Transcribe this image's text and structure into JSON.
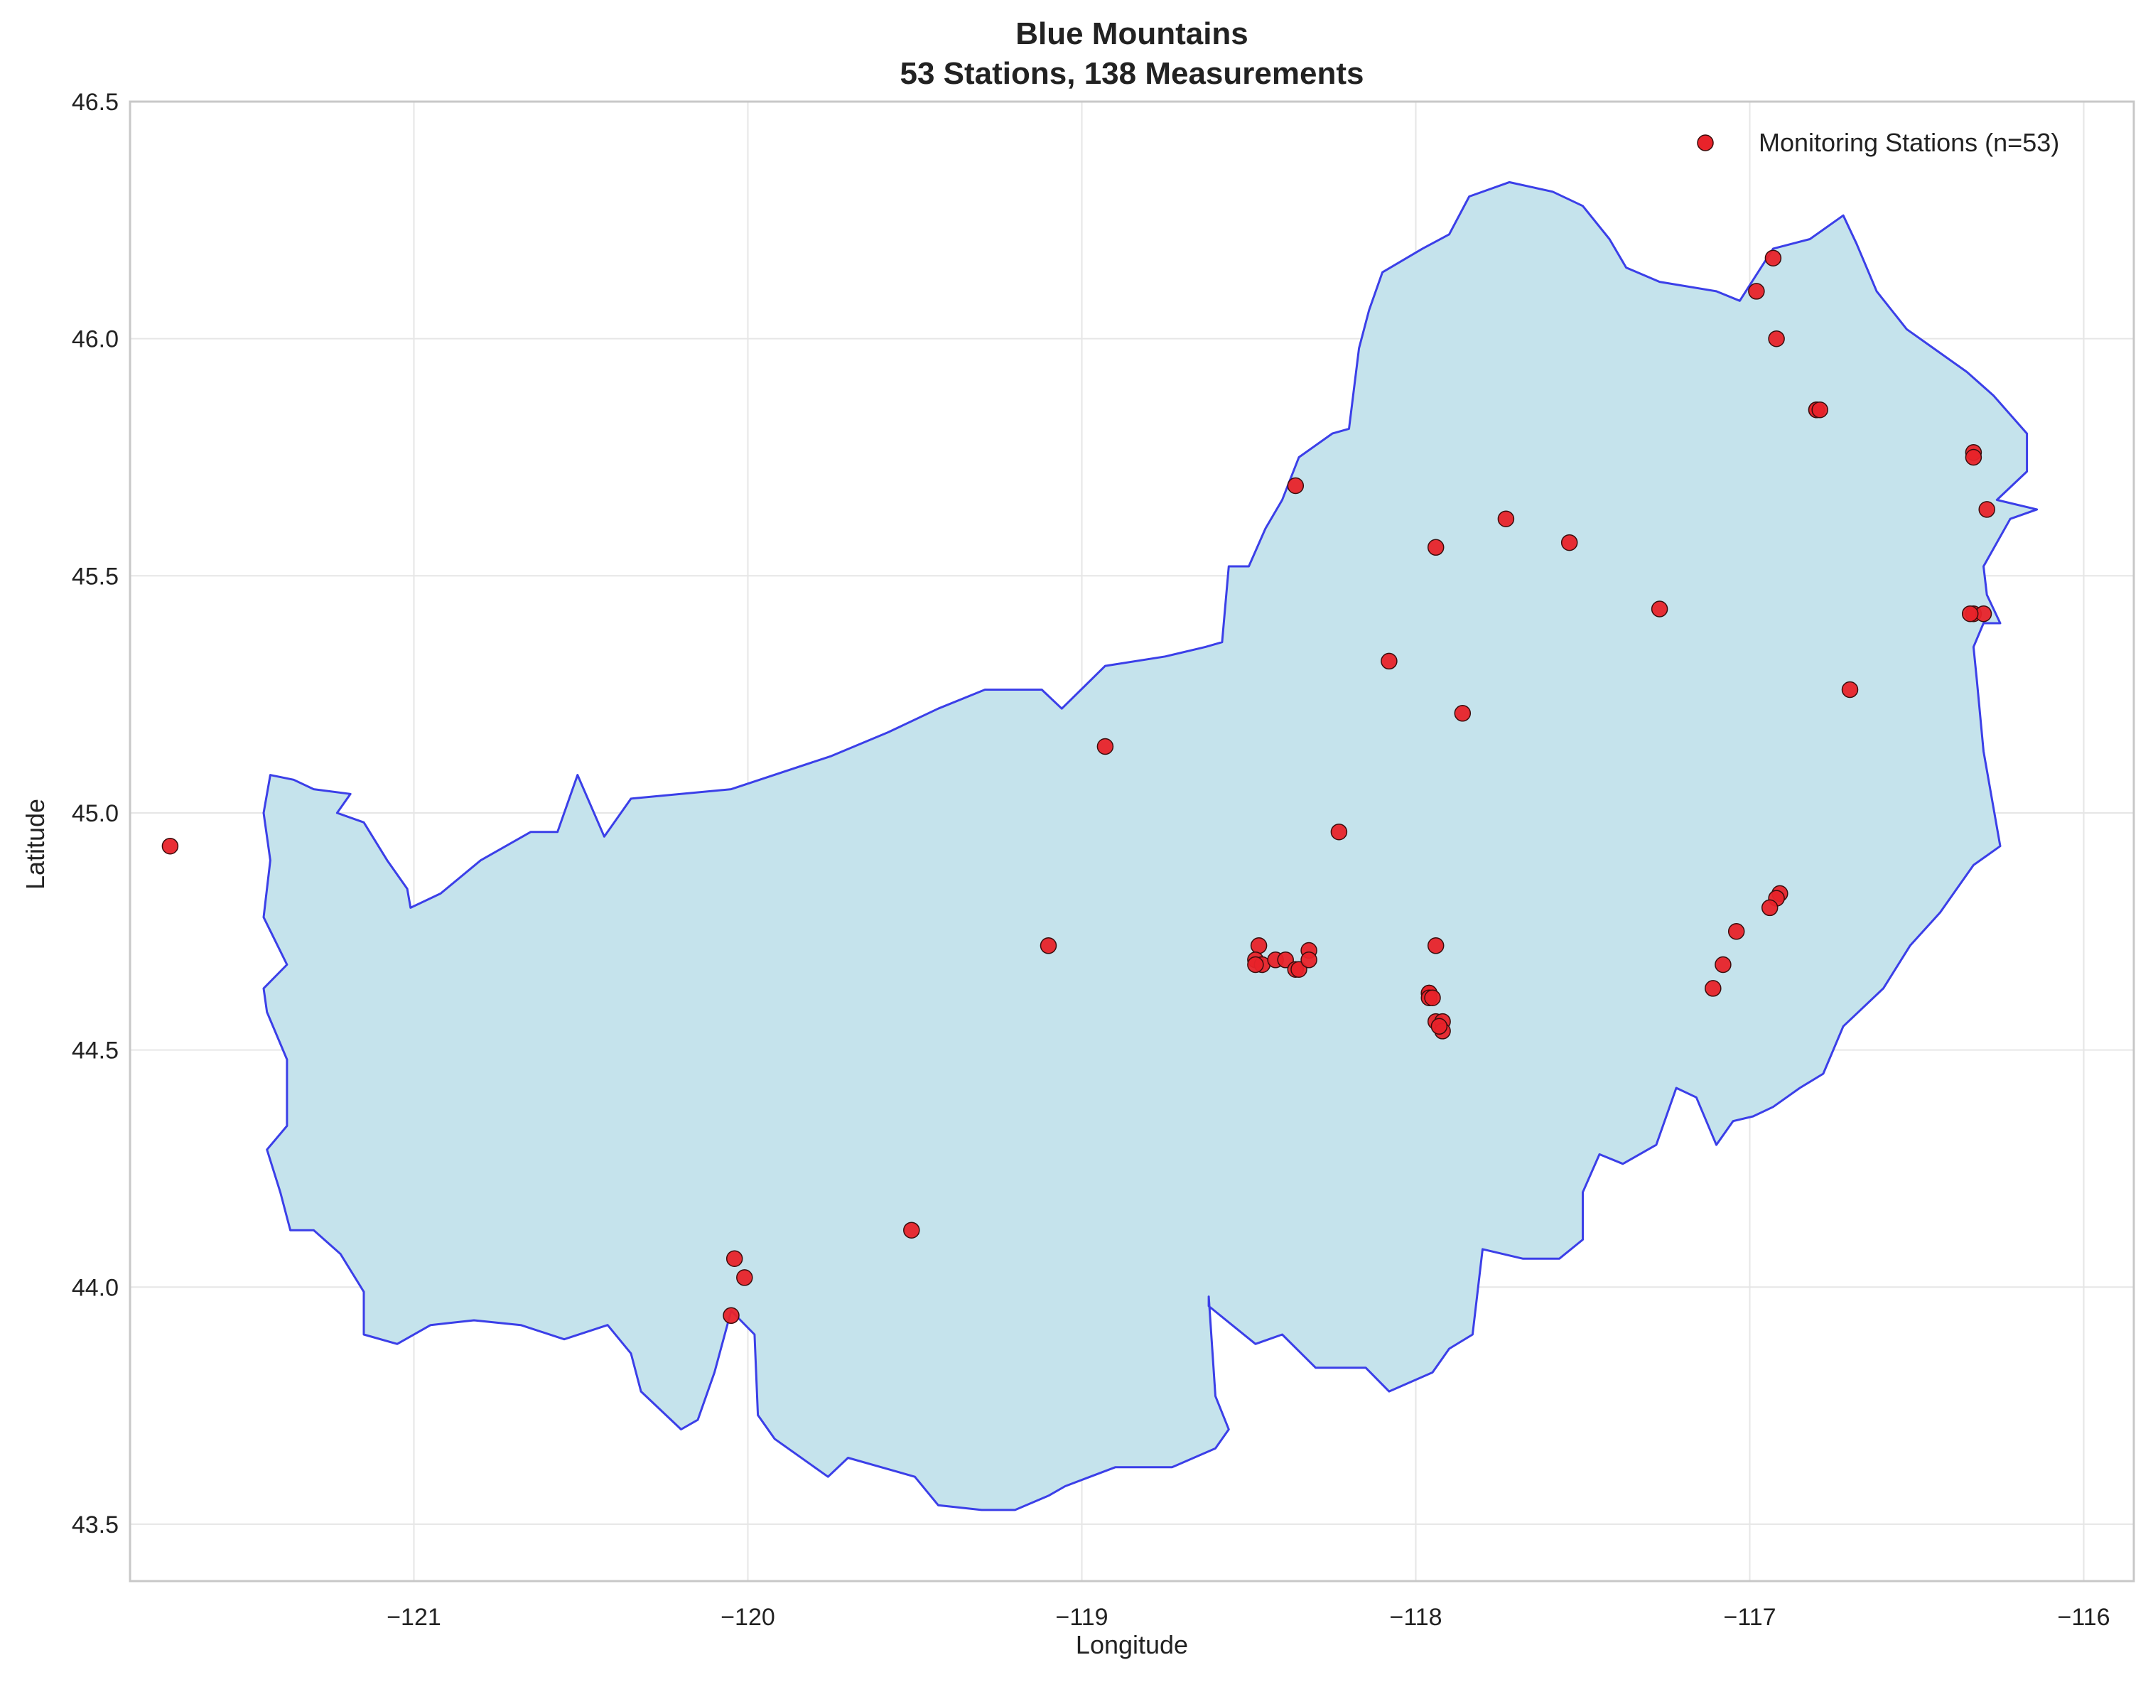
{
  "chart_data": {
    "type": "scatter",
    "title": "Blue Mountains",
    "subtitle": "53 Stations, 138 Measurements",
    "xlabel": "Longitude",
    "ylabel": "Latitude",
    "xlim": [
      -121.85,
      -115.85
    ],
    "ylim": [
      43.38,
      46.5
    ],
    "x_ticks": [
      -121,
      -120,
      -119,
      -118,
      -117,
      -116
    ],
    "x_tick_labels": [
      "−121",
      "−120",
      "−119",
      "−118",
      "−117",
      "−116"
    ],
    "y_ticks": [
      43.5,
      44.0,
      44.5,
      45.0,
      45.5,
      46.0,
      46.5
    ],
    "y_tick_labels": [
      "43.5",
      "44.0",
      "44.5",
      "45.0",
      "45.5",
      "46.0",
      "46.5"
    ],
    "grid": true,
    "legend_position": "top-right",
    "colors": {
      "region_fill": "#c5e3ec",
      "region_edge": "#3b3fe8",
      "marker_fill": "#e8232a",
      "marker_edge": "#3a0d0d"
    },
    "region": {
      "name": "Blue Mountains",
      "outline": [
        [
          -121.44,
          44.29
        ],
        [
          -121.38,
          44.34
        ],
        [
          -121.38,
          44.48
        ],
        [
          -121.44,
          44.58
        ],
        [
          -121.45,
          44.63
        ],
        [
          -121.38,
          44.68
        ],
        [
          -121.45,
          44.78
        ],
        [
          -121.43,
          44.9
        ],
        [
          -121.45,
          45.0
        ],
        [
          -121.43,
          45.08
        ],
        [
          -121.36,
          45.07
        ],
        [
          -121.3,
          45.05
        ],
        [
          -121.19,
          45.04
        ],
        [
          -121.23,
          45.0
        ],
        [
          -121.15,
          44.98
        ],
        [
          -121.08,
          44.9
        ],
        [
          -121.02,
          44.84
        ],
        [
          -121.01,
          44.8
        ],
        [
          -120.92,
          44.83
        ],
        [
          -120.8,
          44.9
        ],
        [
          -120.65,
          44.96
        ],
        [
          -120.57,
          44.96
        ],
        [
          -120.51,
          45.08
        ],
        [
          -120.43,
          44.95
        ],
        [
          -120.35,
          45.03
        ],
        [
          -120.05,
          45.05
        ],
        [
          -119.75,
          45.12
        ],
        [
          -119.58,
          45.17
        ],
        [
          -119.43,
          45.22
        ],
        [
          -119.29,
          45.26
        ],
        [
          -119.12,
          45.26
        ],
        [
          -119.06,
          45.22
        ],
        [
          -118.93,
          45.31
        ],
        [
          -118.75,
          45.33
        ],
        [
          -118.63,
          45.35
        ],
        [
          -118.58,
          45.36
        ],
        [
          -118.56,
          45.52
        ],
        [
          -118.5,
          45.52
        ],
        [
          -118.45,
          45.6
        ],
        [
          -118.4,
          45.66
        ],
        [
          -118.35,
          45.75
        ],
        [
          -118.25,
          45.8
        ],
        [
          -118.2,
          45.81
        ],
        [
          -118.17,
          45.98
        ],
        [
          -118.14,
          46.06
        ],
        [
          -118.1,
          46.14
        ],
        [
          -117.98,
          46.19
        ],
        [
          -117.9,
          46.22
        ],
        [
          -117.84,
          46.3
        ],
        [
          -117.72,
          46.33
        ],
        [
          -117.59,
          46.31
        ],
        [
          -117.5,
          46.28
        ],
        [
          -117.42,
          46.21
        ],
        [
          -117.37,
          46.15
        ],
        [
          -117.27,
          46.12
        ],
        [
          -117.1,
          46.1
        ],
        [
          -117.03,
          46.08
        ],
        [
          -116.93,
          46.19
        ],
        [
          -116.82,
          46.21
        ],
        [
          -116.72,
          46.26
        ],
        [
          -116.68,
          46.2
        ],
        [
          -116.62,
          46.1
        ],
        [
          -116.53,
          46.02
        ],
        [
          -116.45,
          45.98
        ],
        [
          -116.35,
          45.93
        ],
        [
          -116.27,
          45.88
        ],
        [
          -116.17,
          45.8
        ],
        [
          -116.17,
          45.72
        ],
        [
          -116.26,
          45.66
        ],
        [
          -116.14,
          45.64
        ],
        [
          -116.22,
          45.62
        ],
        [
          -116.3,
          45.52
        ],
        [
          -116.29,
          45.46
        ],
        [
          -116.25,
          45.4
        ],
        [
          -116.3,
          45.4
        ],
        [
          -116.33,
          45.35
        ],
        [
          -116.32,
          45.28
        ],
        [
          -116.3,
          45.13
        ],
        [
          -116.25,
          44.93
        ],
        [
          -116.33,
          44.89
        ],
        [
          -116.43,
          44.79
        ],
        [
          -116.52,
          44.72
        ],
        [
          -116.6,
          44.63
        ],
        [
          -116.72,
          44.55
        ],
        [
          -116.78,
          44.45
        ],
        [
          -116.85,
          44.42
        ],
        [
          -116.93,
          44.38
        ],
        [
          -116.99,
          44.36
        ],
        [
          -117.05,
          44.35
        ],
        [
          -117.1,
          44.3
        ],
        [
          -117.16,
          44.4
        ],
        [
          -117.22,
          44.42
        ],
        [
          -117.28,
          44.3
        ],
        [
          -117.38,
          44.26
        ],
        [
          -117.45,
          44.28
        ],
        [
          -117.5,
          44.2
        ],
        [
          -117.5,
          44.1
        ],
        [
          -117.57,
          44.06
        ],
        [
          -117.68,
          44.06
        ],
        [
          -117.8,
          44.08
        ],
        [
          -117.83,
          43.9
        ],
        [
          -117.9,
          43.87
        ],
        [
          -117.95,
          43.82
        ],
        [
          -118.08,
          43.78
        ],
        [
          -118.15,
          43.83
        ],
        [
          -118.3,
          43.83
        ],
        [
          -118.4,
          43.9
        ],
        [
          -118.48,
          43.88
        ],
        [
          -118.55,
          43.92
        ],
        [
          -118.62,
          43.96
        ],
        [
          -118.62,
          43.98
        ],
        [
          -118.6,
          43.77
        ],
        [
          -118.56,
          43.7
        ],
        [
          -118.6,
          43.66
        ],
        [
          -118.73,
          43.62
        ],
        [
          -118.9,
          43.62
        ],
        [
          -119.05,
          43.58
        ],
        [
          -119.1,
          43.56
        ],
        [
          -119.2,
          43.53
        ],
        [
          -119.3,
          43.53
        ],
        [
          -119.43,
          43.54
        ],
        [
          -119.5,
          43.6
        ],
        [
          -119.6,
          43.62
        ],
        [
          -119.7,
          43.64
        ],
        [
          -119.76,
          43.6
        ],
        [
          -119.92,
          43.68
        ],
        [
          -119.97,
          43.73
        ],
        [
          -119.98,
          43.9
        ],
        [
          -120.05,
          43.95
        ],
        [
          -120.1,
          43.82
        ],
        [
          -120.15,
          43.72
        ],
        [
          -120.2,
          43.7
        ],
        [
          -120.32,
          43.78
        ],
        [
          -120.35,
          43.86
        ],
        [
          -120.42,
          43.92
        ],
        [
          -120.55,
          43.89
        ],
        [
          -120.68,
          43.92
        ],
        [
          -120.82,
          43.93
        ],
        [
          -120.95,
          43.92
        ],
        [
          -121.05,
          43.88
        ],
        [
          -121.15,
          43.9
        ],
        [
          -121.15,
          43.99
        ],
        [
          -121.22,
          44.07
        ],
        [
          -121.3,
          44.12
        ],
        [
          -121.37,
          44.12
        ],
        [
          -121.4,
          44.2
        ]
      ]
    },
    "series": [
      {
        "name": "Monitoring Stations (n=53)",
        "points": [
          [
            -121.73,
            44.93
          ],
          [
            -120.04,
            44.06
          ],
          [
            -120.01,
            44.02
          ],
          [
            -120.05,
            43.94
          ],
          [
            -119.51,
            44.12
          ],
          [
            -119.1,
            44.72
          ],
          [
            -118.93,
            45.14
          ],
          [
            -118.36,
            45.69
          ],
          [
            -118.23,
            44.96
          ],
          [
            -118.08,
            45.32
          ],
          [
            -117.94,
            45.56
          ],
          [
            -117.86,
            45.21
          ],
          [
            -117.73,
            45.62
          ],
          [
            -117.54,
            45.57
          ],
          [
            -117.27,
            45.43
          ],
          [
            -116.93,
            46.17
          ],
          [
            -116.98,
            46.1
          ],
          [
            -116.92,
            46.0
          ],
          [
            -116.8,
            45.85
          ],
          [
            -116.8,
            45.85
          ],
          [
            -116.33,
            45.76
          ],
          [
            -116.33,
            45.75
          ],
          [
            -116.29,
            45.64
          ],
          [
            -116.33,
            45.42
          ],
          [
            -116.3,
            45.42
          ],
          [
            -116.7,
            45.26
          ],
          [
            -116.91,
            44.83
          ],
          [
            -116.92,
            44.82
          ],
          [
            -116.94,
            44.8
          ],
          [
            -117.04,
            44.75
          ],
          [
            -117.08,
            44.68
          ],
          [
            -117.11,
            44.63
          ],
          [
            -118.47,
            44.72
          ],
          [
            -118.48,
            44.69
          ],
          [
            -118.46,
            44.68
          ],
          [
            -118.42,
            44.69
          ],
          [
            -118.39,
            44.69
          ],
          [
            -118.36,
            44.67
          ],
          [
            -118.35,
            44.67
          ],
          [
            -118.32,
            44.71
          ],
          [
            -118.32,
            44.69
          ],
          [
            -117.94,
            44.72
          ],
          [
            -117.96,
            44.62
          ],
          [
            -117.96,
            44.62
          ],
          [
            -117.96,
            44.61
          ],
          [
            -117.94,
            44.56
          ],
          [
            -117.92,
            44.56
          ],
          [
            -117.92,
            44.54
          ],
          [
            -117.93,
            44.55
          ],
          [
            -118.48,
            44.68
          ],
          [
            -116.34,
            45.42
          ],
          [
            -117.95,
            44.61
          ],
          [
            -116.79,
            45.85
          ]
        ]
      }
    ]
  }
}
